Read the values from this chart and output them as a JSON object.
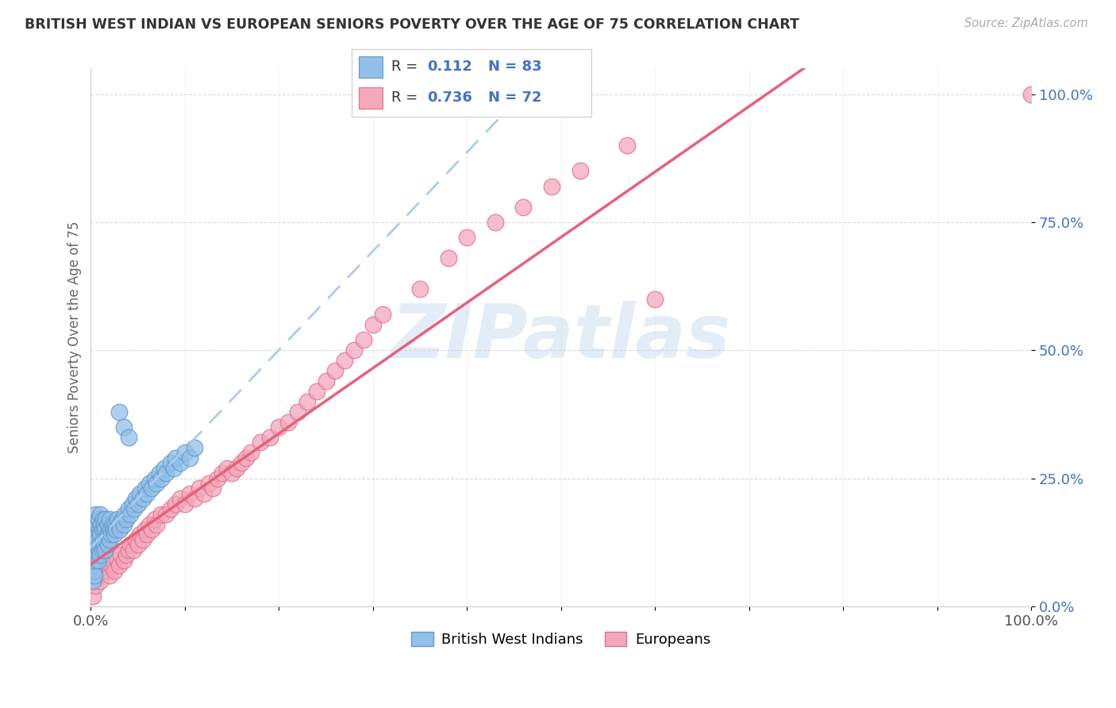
{
  "title": "BRITISH WEST INDIAN VS EUROPEAN SENIORS POVERTY OVER THE AGE OF 75 CORRELATION CHART",
  "source": "Source: ZipAtlas.com",
  "ylabel": "Seniors Poverty Over the Age of 75",
  "blue_R": 0.112,
  "blue_N": 83,
  "pink_R": 0.736,
  "pink_N": 72,
  "blue_color": "#92c0e8",
  "pink_color": "#f4a8bb",
  "blue_edge": "#6499cc",
  "pink_edge": "#e07090",
  "trend_blue_color": "#aaccee",
  "trend_pink_color": "#e8607a",
  "background": "#ffffff",
  "grid_color": "#cccccc",
  "blue_points_x": [
    0.001,
    0.002,
    0.002,
    0.003,
    0.003,
    0.003,
    0.004,
    0.004,
    0.005,
    0.005,
    0.005,
    0.006,
    0.006,
    0.007,
    0.007,
    0.008,
    0.008,
    0.008,
    0.009,
    0.009,
    0.01,
    0.01,
    0.01,
    0.011,
    0.011,
    0.012,
    0.012,
    0.013,
    0.013,
    0.014,
    0.014,
    0.015,
    0.015,
    0.016,
    0.016,
    0.017,
    0.018,
    0.018,
    0.019,
    0.02,
    0.02,
    0.021,
    0.022,
    0.023,
    0.024,
    0.025,
    0.026,
    0.027,
    0.028,
    0.03,
    0.031,
    0.033,
    0.035,
    0.036,
    0.038,
    0.04,
    0.042,
    0.044,
    0.046,
    0.048,
    0.05,
    0.052,
    0.055,
    0.058,
    0.06,
    0.062,
    0.065,
    0.068,
    0.07,
    0.073,
    0.075,
    0.078,
    0.08,
    0.085,
    0.088,
    0.09,
    0.095,
    0.1,
    0.105,
    0.11,
    0.03,
    0.035,
    0.04
  ],
  "blue_points_y": [
    0.08,
    0.05,
    0.12,
    0.07,
    0.1,
    0.15,
    0.06,
    0.13,
    0.09,
    0.14,
    0.18,
    0.11,
    0.16,
    0.1,
    0.13,
    0.09,
    0.12,
    0.17,
    0.11,
    0.15,
    0.1,
    0.14,
    0.18,
    0.12,
    0.16,
    0.11,
    0.15,
    0.13,
    0.17,
    0.12,
    0.16,
    0.11,
    0.15,
    0.13,
    0.17,
    0.14,
    0.12,
    0.16,
    0.14,
    0.13,
    0.17,
    0.15,
    0.14,
    0.16,
    0.15,
    0.14,
    0.16,
    0.15,
    0.17,
    0.16,
    0.15,
    0.17,
    0.16,
    0.18,
    0.17,
    0.19,
    0.18,
    0.2,
    0.19,
    0.21,
    0.2,
    0.22,
    0.21,
    0.23,
    0.22,
    0.24,
    0.23,
    0.25,
    0.24,
    0.26,
    0.25,
    0.27,
    0.26,
    0.28,
    0.27,
    0.29,
    0.28,
    0.3,
    0.29,
    0.31,
    0.38,
    0.35,
    0.33
  ],
  "pink_points_x": [
    0.002,
    0.005,
    0.008,
    0.01,
    0.012,
    0.015,
    0.018,
    0.02,
    0.022,
    0.025,
    0.028,
    0.03,
    0.032,
    0.035,
    0.038,
    0.04,
    0.042,
    0.045,
    0.048,
    0.05,
    0.052,
    0.055,
    0.058,
    0.06,
    0.062,
    0.065,
    0.068,
    0.07,
    0.075,
    0.08,
    0.085,
    0.09,
    0.095,
    0.1,
    0.105,
    0.11,
    0.115,
    0.12,
    0.125,
    0.13,
    0.135,
    0.14,
    0.145,
    0.15,
    0.155,
    0.16,
    0.165,
    0.17,
    0.18,
    0.19,
    0.2,
    0.21,
    0.22,
    0.23,
    0.24,
    0.25,
    0.26,
    0.27,
    0.28,
    0.29,
    0.3,
    0.31,
    0.35,
    0.38,
    0.4,
    0.43,
    0.46,
    0.49,
    0.52,
    0.57,
    0.6,
    1.0
  ],
  "pink_points_y": [
    0.02,
    0.04,
    0.06,
    0.05,
    0.07,
    0.08,
    0.07,
    0.06,
    0.08,
    0.07,
    0.09,
    0.08,
    0.1,
    0.09,
    0.1,
    0.11,
    0.12,
    0.11,
    0.13,
    0.12,
    0.14,
    0.13,
    0.15,
    0.14,
    0.16,
    0.15,
    0.17,
    0.16,
    0.18,
    0.18,
    0.19,
    0.2,
    0.21,
    0.2,
    0.22,
    0.21,
    0.23,
    0.22,
    0.24,
    0.23,
    0.25,
    0.26,
    0.27,
    0.26,
    0.27,
    0.28,
    0.29,
    0.3,
    0.32,
    0.33,
    0.35,
    0.36,
    0.38,
    0.4,
    0.42,
    0.44,
    0.46,
    0.48,
    0.5,
    0.52,
    0.55,
    0.57,
    0.62,
    0.68,
    0.72,
    0.75,
    0.78,
    0.82,
    0.85,
    0.9,
    0.6,
    1.0
  ],
  "xlim": [
    0.0,
    1.0
  ],
  "ylim": [
    0.0,
    1.05
  ],
  "xticks": [
    0.0,
    0.1,
    0.2,
    0.3,
    0.4,
    0.5,
    0.6,
    0.7,
    0.8,
    0.9,
    1.0
  ],
  "yticks": [
    0.0,
    0.25,
    0.5,
    0.75,
    1.0
  ],
  "ytick_labels": [
    "0.0%",
    "25.0%",
    "50.0%",
    "75.0%",
    "100.0%"
  ],
  "watermark_text": "ZIPatlas",
  "watermark_color": "#c8ddf0",
  "legend_text_color": "#4472c4"
}
